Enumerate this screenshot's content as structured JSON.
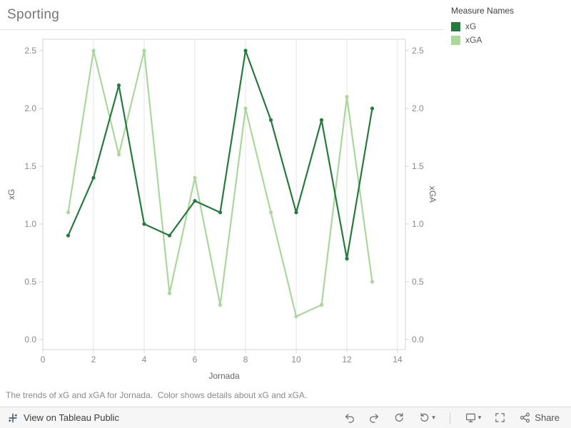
{
  "title": "Sporting",
  "legend": {
    "title": "Measure Names",
    "items": [
      {
        "label": "xG",
        "color": "#267a3d"
      },
      {
        "label": "xGA",
        "color": "#abd79c"
      }
    ]
  },
  "chart_data": {
    "type": "line",
    "title": "Sporting",
    "xlabel": "Jornada",
    "ylabel_left": "xG",
    "ylabel_right": "xGA",
    "xlim": [
      0,
      14
    ],
    "ylim": [
      0.0,
      2.5
    ],
    "x_ticks": [
      0,
      2,
      4,
      6,
      8,
      10,
      12,
      14
    ],
    "y_ticks": [
      0.0,
      0.5,
      1.0,
      1.5,
      2.0,
      2.5
    ],
    "grid": "vertical",
    "legend_position": "top-right",
    "x": [
      1,
      2,
      3,
      4,
      5,
      6,
      7,
      8,
      9,
      10,
      11,
      12,
      13
    ],
    "series": [
      {
        "name": "xG",
        "axis": "left",
        "color": "#267a3d",
        "values": [
          0.9,
          1.4,
          2.2,
          1.0,
          0.9,
          1.2,
          1.1,
          2.5,
          1.9,
          1.1,
          1.9,
          0.7,
          2.0
        ]
      },
      {
        "name": "xGA",
        "axis": "right",
        "color": "#abd79c",
        "values": [
          1.1,
          2.5,
          1.6,
          2.5,
          0.4,
          1.4,
          0.3,
          2.0,
          1.1,
          0.2,
          0.3,
          2.1,
          0.5
        ]
      }
    ]
  },
  "caption": "The trends of xG and xGA for Jornada.  Color shows details about xG and xGA.",
  "toolbar": {
    "view_label": "View on Tableau Public",
    "share_label": "Share",
    "icons": [
      "tableau-logo",
      "undo",
      "redo",
      "reset",
      "refresh",
      "download",
      "fullscreen",
      "share"
    ]
  }
}
